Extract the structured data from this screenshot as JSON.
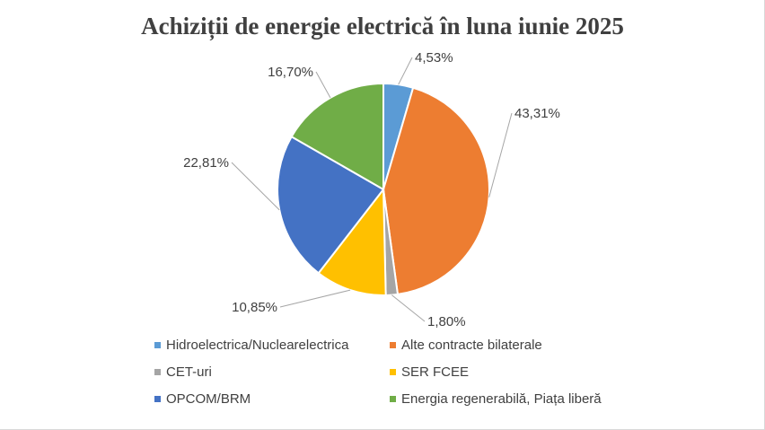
{
  "chart_data": {
    "type": "pie",
    "title": "Achiziții de energie electrică în luna iunie 2025",
    "categories": [
      "Hidroelectrica/Nuclearelectrica",
      "Alte contracte bilaterale",
      "CET-uri",
      "SER FCEE",
      "OPCOM/BRM",
      "Energia regenerabilă, Piața liberă"
    ],
    "values": [
      4.53,
      43.31,
      1.8,
      10.85,
      22.81,
      16.7
    ],
    "labels": [
      "4,53%",
      "43,31%",
      "1,80%",
      "10,85%",
      "22,81%",
      "16,70%"
    ],
    "colors": [
      "#5b9bd5",
      "#ed7d31",
      "#a5a5a5",
      "#ffc000",
      "#4472c4",
      "#70ad47"
    ],
    "legend_position": "bottom",
    "start_angle": "12 o'clock, clockwise"
  }
}
